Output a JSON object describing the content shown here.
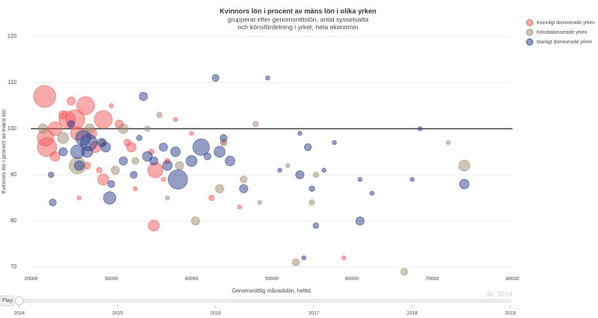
{
  "chart_data": {
    "type": "scatter",
    "title": "Kvinnors lön i procent av mäns lön i olika yrken",
    "subtitle": [
      "grupperat efter genomsnittslön, antal sysselsatta",
      "och könsfördelning i yrket, hela ekonomin"
    ],
    "x_label": "Genomsnittlig månadslön, heltid.",
    "y_label": "Kvinnors lön i procent av mäns lön",
    "xlim": [
      20000,
      80000
    ],
    "xticks": [
      20000,
      30000,
      40000,
      50000,
      60000,
      70000,
      80000
    ],
    "ylim": [
      70,
      120
    ],
    "yticks": [
      70,
      80,
      90,
      100,
      110,
      120
    ],
    "reference_line": 100,
    "grid": true,
    "legend_position": "top-right",
    "series": [
      {
        "name": "Kvinnligt dominerade yrken",
        "color": "#f05a5a",
        "x": [
          21700,
          22000,
          21800,
          23000,
          24500,
          25500,
          26800,
          29000,
          25800,
          27500,
          28000,
          35500,
          35300,
          29000,
          23000,
          25000,
          31000,
          32500,
          42500,
          59000,
          46000,
          37000,
          38000,
          33000,
          27000,
          30000,
          24000,
          28500,
          36500,
          40000,
          32000,
          35000,
          26000,
          44000
        ],
        "values": [
          107,
          96,
          98,
          100,
          102,
          102,
          105,
          102,
          99,
          99,
          96,
          91,
          79,
          89,
          94,
          106,
          101,
          96,
          85,
          72,
          83,
          93,
          102,
          87,
          92,
          105,
          103,
          91,
          89,
          99,
          97,
          95,
          85,
          97
        ],
        "sizes": [
          16,
          14,
          12,
          10,
          12,
          14,
          13,
          13,
          10,
          8,
          8,
          11,
          8,
          8,
          7,
          6,
          6,
          7,
          4,
          3,
          3,
          4,
          3,
          3,
          5,
          3,
          6,
          4,
          3,
          3,
          5,
          4,
          3,
          3
        ]
      },
      {
        "name": "Könsbalanserade yrken",
        "color": "#a08c6e",
        "x": [
          21500,
          24000,
          25800,
          27300,
          30500,
          31500,
          33000,
          38500,
          40500,
          43500,
          44000,
          46500,
          48000,
          53000,
          55000,
          55500,
          66500,
          72000,
          74000,
          37000,
          36000,
          48500,
          29000,
          34500,
          52000
        ],
        "values": [
          100,
          98,
          92,
          100,
          91,
          100,
          93,
          92,
          80,
          87,
          97,
          89,
          101,
          71,
          84,
          90,
          69,
          97,
          92,
          85,
          103,
          84,
          97,
          100,
          92
        ],
        "sizes": [
          7,
          8,
          12,
          7,
          6,
          7,
          5,
          6,
          6,
          6,
          5,
          5,
          4,
          5,
          4,
          4,
          5,
          3,
          8,
          3,
          4,
          3,
          5,
          4,
          3
        ]
      },
      {
        "name": "Manligt dominerade yrken",
        "color": "#2c3e8c",
        "x": [
          22500,
          22700,
          24000,
          25000,
          25800,
          26500,
          27200,
          27000,
          26000,
          28800,
          29300,
          29800,
          30000,
          31500,
          32800,
          34000,
          34500,
          35300,
          36500,
          37000,
          38300,
          38000,
          40000,
          41200,
          43000,
          43500,
          44000,
          44800,
          46500,
          49500,
          51000,
          53500,
          54500,
          55000,
          55500,
          53500,
          57800,
          61000,
          61000,
          62500,
          67500,
          68500,
          74000,
          54000,
          56500,
          42000,
          33500
        ],
        "values": [
          90,
          84,
          95,
          101,
          95,
          98,
          97,
          95,
          92,
          97,
          96,
          85,
          88,
          93,
          90,
          107,
          94,
          93,
          96,
          92,
          89,
          95,
          93,
          96,
          111,
          95,
          98,
          93,
          87,
          111,
          91,
          90,
          96,
          87,
          79,
          99,
          97,
          80,
          89,
          86,
          89,
          100,
          88,
          72,
          91,
          94,
          98
        ],
        "sizes": [
          4,
          5,
          6,
          5,
          10,
          11,
          12,
          8,
          7,
          6,
          7,
          9,
          5,
          6,
          5,
          6,
          7,
          6,
          6,
          7,
          14,
          7,
          8,
          12,
          5,
          8,
          5,
          7,
          6,
          3,
          3,
          6,
          5,
          4,
          4,
          3,
          3,
          6,
          3,
          3,
          3,
          3,
          7,
          3,
          3,
          5,
          4
        ]
      }
    ],
    "slider": {
      "button": "Play",
      "years": [
        2014,
        2015,
        2016,
        2017,
        2018,
        2019
      ],
      "current": "år: 2014"
    }
  }
}
